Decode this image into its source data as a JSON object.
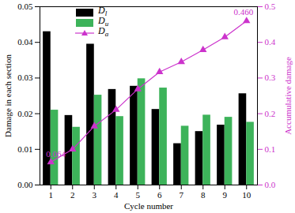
{
  "chart_data": {
    "type": "bar",
    "x_label": "Cycle number",
    "y_label": "Damage in each section",
    "y2_label": "Accumulative damage",
    "categories": [
      "1",
      "2",
      "3",
      "4",
      "5",
      "6",
      "7",
      "8",
      "9",
      "10"
    ],
    "series": [
      {
        "name": "Dl",
        "color": "#000000",
        "type": "bar",
        "values": [
          0.043,
          0.0195,
          0.0395,
          0.0268,
          0.0277,
          0.0212,
          0.0116,
          0.015,
          0.0168,
          0.0256
        ]
      },
      {
        "name": "Du",
        "color": "#3db35a",
        "type": "bar",
        "values": [
          0.021,
          0.0162,
          0.0252,
          0.0192,
          0.0298,
          0.0272,
          0.0165,
          0.0196,
          0.019,
          0.0176
        ]
      },
      {
        "name": "Da",
        "color": "#cc33cc",
        "type": "line",
        "marker": "triangle",
        "axis": "y2",
        "values": [
          0.064,
          0.1,
          0.165,
          0.211,
          0.269,
          0.317,
          0.345,
          0.379,
          0.415,
          0.46
        ]
      }
    ],
    "ylim": [
      0,
      0.05
    ],
    "yticks": [
      {
        "value": 0,
        "label": "0.00"
      },
      0.01,
      0.02,
      0.03,
      0.04,
      0.05
    ],
    "y2lim": [
      0,
      0.5
    ],
    "y2ticks": [
      {
        "value": 0,
        "label": "0.0"
      },
      0.1,
      0.2,
      0.3,
      0.4,
      0.5
    ],
    "annotations": [
      {
        "category": "1",
        "value": 0.064,
        "label": "0.064",
        "axis": "y2"
      },
      {
        "category": "10",
        "value": 0.46,
        "label": "0.460",
        "axis": "y2"
      }
    ],
    "legend": "top-left",
    "grid": false
  }
}
